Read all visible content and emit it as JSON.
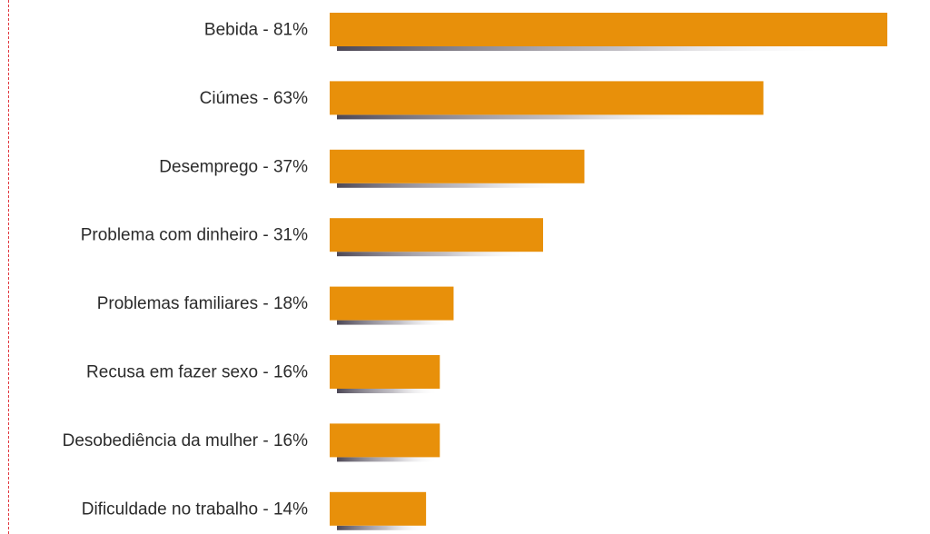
{
  "chart_data": {
    "type": "bar",
    "orientation": "horizontal",
    "title": "",
    "xlabel": "",
    "ylabel": "",
    "xlim": [
      0,
      100
    ],
    "categories": [
      "Bebida - 81%",
      "Ciúmes - 63%",
      "Desemprego - 37%",
      "Problema com dinheiro - 31%",
      "Problemas familiares - 18%",
      "Recusa em fazer sexo - 16%",
      "Desobediência da mulher - 16%",
      "Dificuldade no trabalho - 14%"
    ],
    "values": [
      81,
      63,
      37,
      31,
      18,
      16,
      16,
      14
    ],
    "bar_color": "#e8900a",
    "shadow_color": "#5a5562",
    "grid": false,
    "legend": "none"
  },
  "frame": {
    "line_color": "#e2383f"
  }
}
